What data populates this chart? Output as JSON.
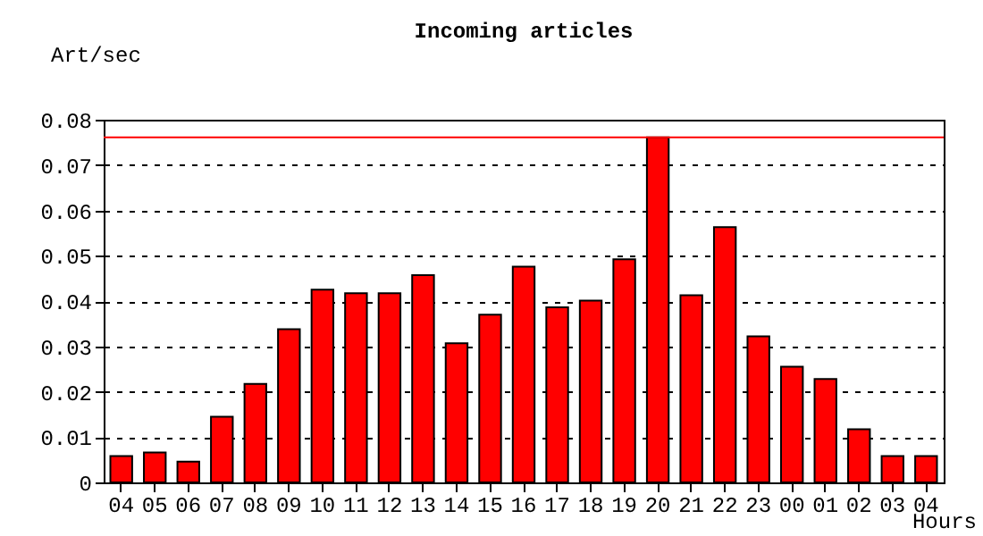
{
  "chart_data": {
    "type": "bar",
    "title": "Incoming articles",
    "xlabel": "Hours",
    "ylabel": "Art/sec",
    "categories": [
      "04",
      "05",
      "06",
      "07",
      "08",
      "09",
      "10",
      "11",
      "12",
      "13",
      "14",
      "15",
      "16",
      "17",
      "18",
      "19",
      "20",
      "21",
      "22",
      "23",
      "00",
      "01",
      "02",
      "03",
      "04"
    ],
    "values": [
      0.0058,
      0.0066,
      0.0046,
      0.0145,
      0.0217,
      0.0338,
      0.0425,
      0.0417,
      0.0417,
      0.0457,
      0.0307,
      0.037,
      0.0476,
      0.0386,
      0.0401,
      0.0492,
      0.0761,
      0.0413,
      0.0563,
      0.0322,
      0.0255,
      0.0228,
      0.0117,
      0.0058,
      0.0058
    ],
    "color": "#ff0000",
    "ylim": [
      0,
      0.08
    ],
    "yticks": [
      0,
      0.01,
      0.02,
      0.03,
      0.04,
      0.05,
      0.06,
      0.07,
      0.08
    ],
    "grid": "y",
    "ref_lines": [
      {
        "axis": "y",
        "value": 0.0761,
        "color": "#ff0000"
      }
    ]
  }
}
